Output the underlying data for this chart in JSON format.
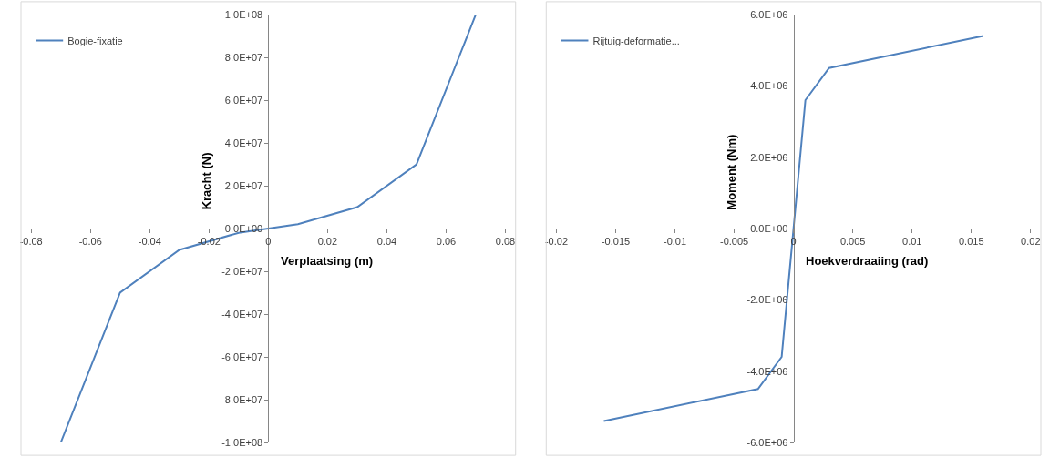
{
  "chart_data": [
    {
      "type": "line",
      "xlabel": "Verplaatsing (m)",
      "ylabel": "Kracht (N)",
      "legend": "top left",
      "marker": "none",
      "line_style": "solid",
      "x": [
        -0.07,
        -0.05,
        -0.03,
        -0.01,
        0,
        0.01,
        0.03,
        0.05,
        0.07
      ],
      "series": [
        {
          "name": "Bogie-fixatie",
          "color": "#4f81bd",
          "values": [
            -100000000,
            -30000000,
            -10000000,
            -2000000,
            0,
            2000000,
            10000000,
            30000000,
            100000000
          ]
        }
      ],
      "xlim": [
        -0.08,
        0.08
      ],
      "xticks": [
        -0.08,
        -0.06,
        -0.04,
        -0.02,
        0,
        0.02,
        0.04,
        0.06,
        0.08
      ],
      "ylim": [
        -100000000,
        100000000
      ],
      "yticks": [
        {
          "value": -100000000,
          "label": "-1.0E+08"
        },
        {
          "value": -80000000,
          "label": "-8.0E+07"
        },
        {
          "value": -60000000,
          "label": "-6.0E+07"
        },
        {
          "value": -40000000,
          "label": "-4.0E+07"
        },
        {
          "value": -20000000,
          "label": "-2.0E+07"
        },
        {
          "value": 0,
          "label": "0.0E+00"
        },
        {
          "value": 20000000,
          "label": "2.0E+07"
        },
        {
          "value": 40000000,
          "label": "4.0E+07"
        },
        {
          "value": 60000000,
          "label": "6.0E+07"
        },
        {
          "value": 80000000,
          "label": "8.0E+07"
        },
        {
          "value": 100000000,
          "label": "1.0E+08"
        }
      ]
    },
    {
      "type": "line",
      "xlabel": "Hoekverdraaiing (rad)",
      "ylabel": "Moment (Nm)",
      "legend": "top left",
      "marker": "none",
      "line_style": "solid",
      "x": [
        -0.016,
        -0.003,
        -0.001,
        0,
        0.001,
        0.003,
        0.016
      ],
      "series": [
        {
          "name": "Rijtuig-deformatie...",
          "color": "#4f81bd",
          "values": [
            -5400000,
            -4500000,
            -3600000,
            0,
            3600000,
            4500000,
            5400000
          ]
        }
      ],
      "xlim": [
        -0.02,
        0.02
      ],
      "xticks": [
        -0.02,
        -0.015,
        -0.01,
        -0.005,
        0,
        0.005,
        0.01,
        0.015,
        0.02
      ],
      "ylim": [
        -6000000,
        6000000
      ],
      "yticks": [
        {
          "value": -6000000,
          "label": "-6.0E+06"
        },
        {
          "value": -4000000,
          "label": "-4.0E+06"
        },
        {
          "value": -2000000,
          "label": "-2.0E+06"
        },
        {
          "value": 0,
          "label": "0.0E+00"
        },
        {
          "value": 2000000,
          "label": "2.0E+06"
        },
        {
          "value": 4000000,
          "label": "4.0E+06"
        },
        {
          "value": 6000000,
          "label": "6.0E+06"
        }
      ]
    }
  ]
}
